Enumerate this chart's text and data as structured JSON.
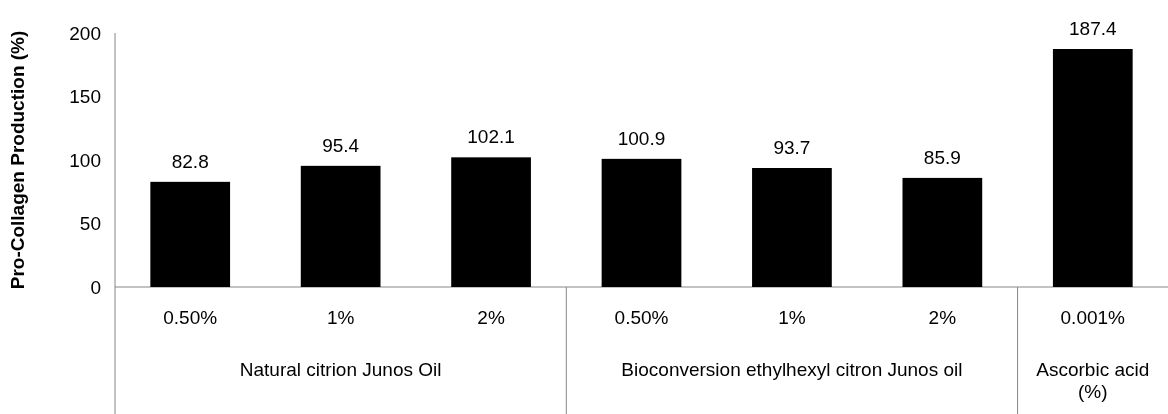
{
  "chart_data": {
    "type": "bar",
    "ylabel": "Pro-Collagen Production (%)",
    "categories": [
      "0.50%",
      "1%",
      "2%",
      "0.50%",
      "1%",
      "2%",
      "0.001%"
    ],
    "values": [
      82.8,
      95.4,
      102.1,
      100.9,
      93.7,
      85.9,
      187.4
    ],
    "color": "#000000",
    "ylim": [
      0,
      200
    ],
    "yticks": [
      0,
      50,
      100,
      150,
      200
    ],
    "data_labels": true,
    "grid": false,
    "annotations": [
      "Natural citrion Junos Oil",
      "Bioconversion ethylhexyl citron Junos oil",
      "Ascorbic acid (%)"
    ]
  }
}
